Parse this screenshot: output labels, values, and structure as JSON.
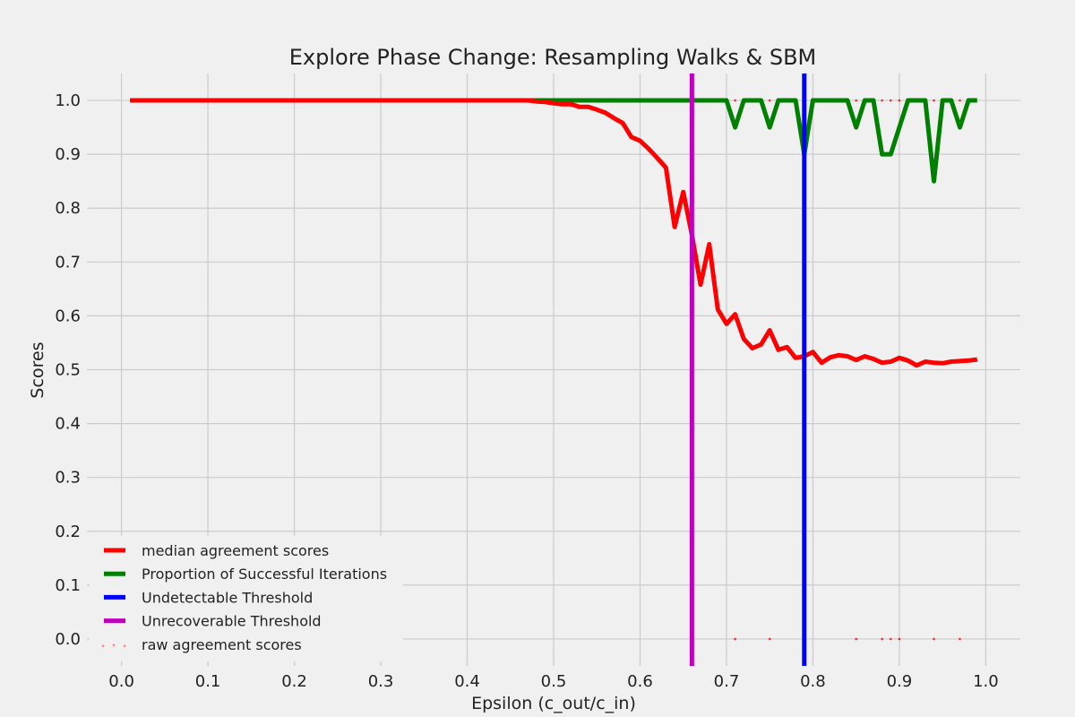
{
  "chart_data": {
    "type": "line",
    "title": "Explore Phase Change: Resampling Walks & SBM",
    "xlabel": "Epsilon (c_out/c_in)",
    "ylabel": "Scores",
    "xlim": [
      -0.04,
      1.04
    ],
    "ylim": [
      -0.05,
      1.05
    ],
    "grid": true,
    "legend_position": "bottom-left",
    "xticks": [
      "0.0",
      "0.1",
      "0.2",
      "0.3",
      "0.4",
      "0.5",
      "0.6",
      "0.7",
      "0.8",
      "0.9",
      "1.0"
    ],
    "yticks": [
      "0.0",
      "0.1",
      "0.2",
      "0.3",
      "0.4",
      "0.5",
      "0.6",
      "0.7",
      "0.8",
      "0.9",
      "1.0"
    ],
    "x": [
      0.01,
      0.02,
      0.03,
      0.04,
      0.05,
      0.06,
      0.07,
      0.08,
      0.09,
      0.1,
      0.11,
      0.12,
      0.13,
      0.14,
      0.15,
      0.16,
      0.17,
      0.18,
      0.19,
      0.2,
      0.21,
      0.22,
      0.23,
      0.24,
      0.25,
      0.26,
      0.27,
      0.28,
      0.29,
      0.3,
      0.31,
      0.32,
      0.33,
      0.34,
      0.35,
      0.36,
      0.37,
      0.38,
      0.39,
      0.4,
      0.41,
      0.42,
      0.43,
      0.44,
      0.45,
      0.46,
      0.47,
      0.48,
      0.49,
      0.5,
      0.51,
      0.52,
      0.53,
      0.54,
      0.55,
      0.56,
      0.57,
      0.58,
      0.59,
      0.6,
      0.61,
      0.62,
      0.63,
      0.64,
      0.65,
      0.66,
      0.67,
      0.68,
      0.69,
      0.7,
      0.71,
      0.72,
      0.73,
      0.74,
      0.75,
      0.76,
      0.77,
      0.78,
      0.79,
      0.8,
      0.81,
      0.82,
      0.83,
      0.84,
      0.85,
      0.86,
      0.87,
      0.88,
      0.89,
      0.9,
      0.91,
      0.92,
      0.93,
      0.94,
      0.95,
      0.96,
      0.97,
      0.98,
      0.99
    ],
    "series": [
      {
        "name": "median agreement scores",
        "color": "#ff0000",
        "values": [
          1,
          1,
          1,
          1,
          1,
          1,
          1,
          1,
          1,
          1,
          1,
          1,
          1,
          1,
          1,
          1,
          1,
          1,
          1,
          1,
          1,
          1,
          1,
          1,
          1,
          1,
          1,
          1,
          1,
          1,
          1,
          1,
          1,
          1,
          1,
          1,
          1,
          1,
          1,
          1,
          1,
          1,
          1,
          1,
          1,
          1,
          1,
          0.998,
          0.997,
          0.995,
          0.993,
          0.993,
          0.988,
          0.988,
          0.983,
          0.977,
          0.967,
          0.958,
          0.932,
          0.925,
          0.91,
          0.893,
          0.875,
          0.765,
          0.83,
          0.75,
          0.658,
          0.733,
          0.612,
          0.585,
          0.603,
          0.557,
          0.54,
          0.547,
          0.573,
          0.537,
          0.542,
          0.522,
          0.525,
          0.533,
          0.513,
          0.523,
          0.527,
          0.525,
          0.518,
          0.525,
          0.52,
          0.513,
          0.515,
          0.522,
          0.517,
          0.508,
          0.515,
          0.513,
          0.512,
          0.515,
          0.516,
          0.517,
          0.519
        ]
      },
      {
        "name": "Proportion of Successful Iterations",
        "color": "#008000",
        "values": [
          1,
          1,
          1,
          1,
          1,
          1,
          1,
          1,
          1,
          1,
          1,
          1,
          1,
          1,
          1,
          1,
          1,
          1,
          1,
          1,
          1,
          1,
          1,
          1,
          1,
          1,
          1,
          1,
          1,
          1,
          1,
          1,
          1,
          1,
          1,
          1,
          1,
          1,
          1,
          1,
          1,
          1,
          1,
          1,
          1,
          1,
          1,
          1,
          1,
          1,
          1,
          1,
          1,
          1,
          1,
          1,
          1,
          1,
          1,
          1,
          1,
          1,
          1,
          1,
          1,
          1,
          1,
          1,
          1,
          1,
          0.95,
          1,
          1,
          1,
          0.95,
          1,
          1,
          1,
          0.9,
          1,
          1,
          1,
          1,
          1,
          0.95,
          1,
          1,
          0.9,
          0.9,
          0.95,
          1,
          1,
          1,
          0.85,
          1,
          1,
          0.95,
          1,
          1
        ]
      }
    ],
    "thresholds": [
      {
        "name": "Undetectable Threshold",
        "color": "#0000ff",
        "x": 0.79
      },
      {
        "name": "Unrecoverable Threshold",
        "color": "#bf00bf",
        "x": 0.66
      }
    ],
    "raw_points": {
      "name": "raw agreement scores",
      "color": "#ff0000",
      "points": [
        [
          0.71,
          1
        ],
        [
          0.75,
          1
        ],
        [
          0.85,
          1
        ],
        [
          0.88,
          1
        ],
        [
          0.89,
          1
        ],
        [
          0.9,
          1
        ],
        [
          0.94,
          1
        ],
        [
          0.97,
          1
        ],
        [
          0.71,
          0
        ],
        [
          0.75,
          0
        ],
        [
          0.85,
          0
        ],
        [
          0.88,
          0
        ],
        [
          0.89,
          0
        ],
        [
          0.9,
          0
        ],
        [
          0.94,
          0
        ],
        [
          0.97,
          0
        ]
      ]
    },
    "legend": [
      {
        "label": "median agreement scores",
        "color": "#ff0000",
        "style": "line"
      },
      {
        "label": "Proportion of Successful Iterations",
        "color": "#008000",
        "style": "line"
      },
      {
        "label": "Undetectable Threshold",
        "color": "#0000ff",
        "style": "line"
      },
      {
        "label": "Unrecoverable Threshold",
        "color": "#bf00bf",
        "style": "line"
      },
      {
        "label": "raw agreement scores",
        "color": "#ff8080",
        "style": "dots"
      }
    ]
  }
}
